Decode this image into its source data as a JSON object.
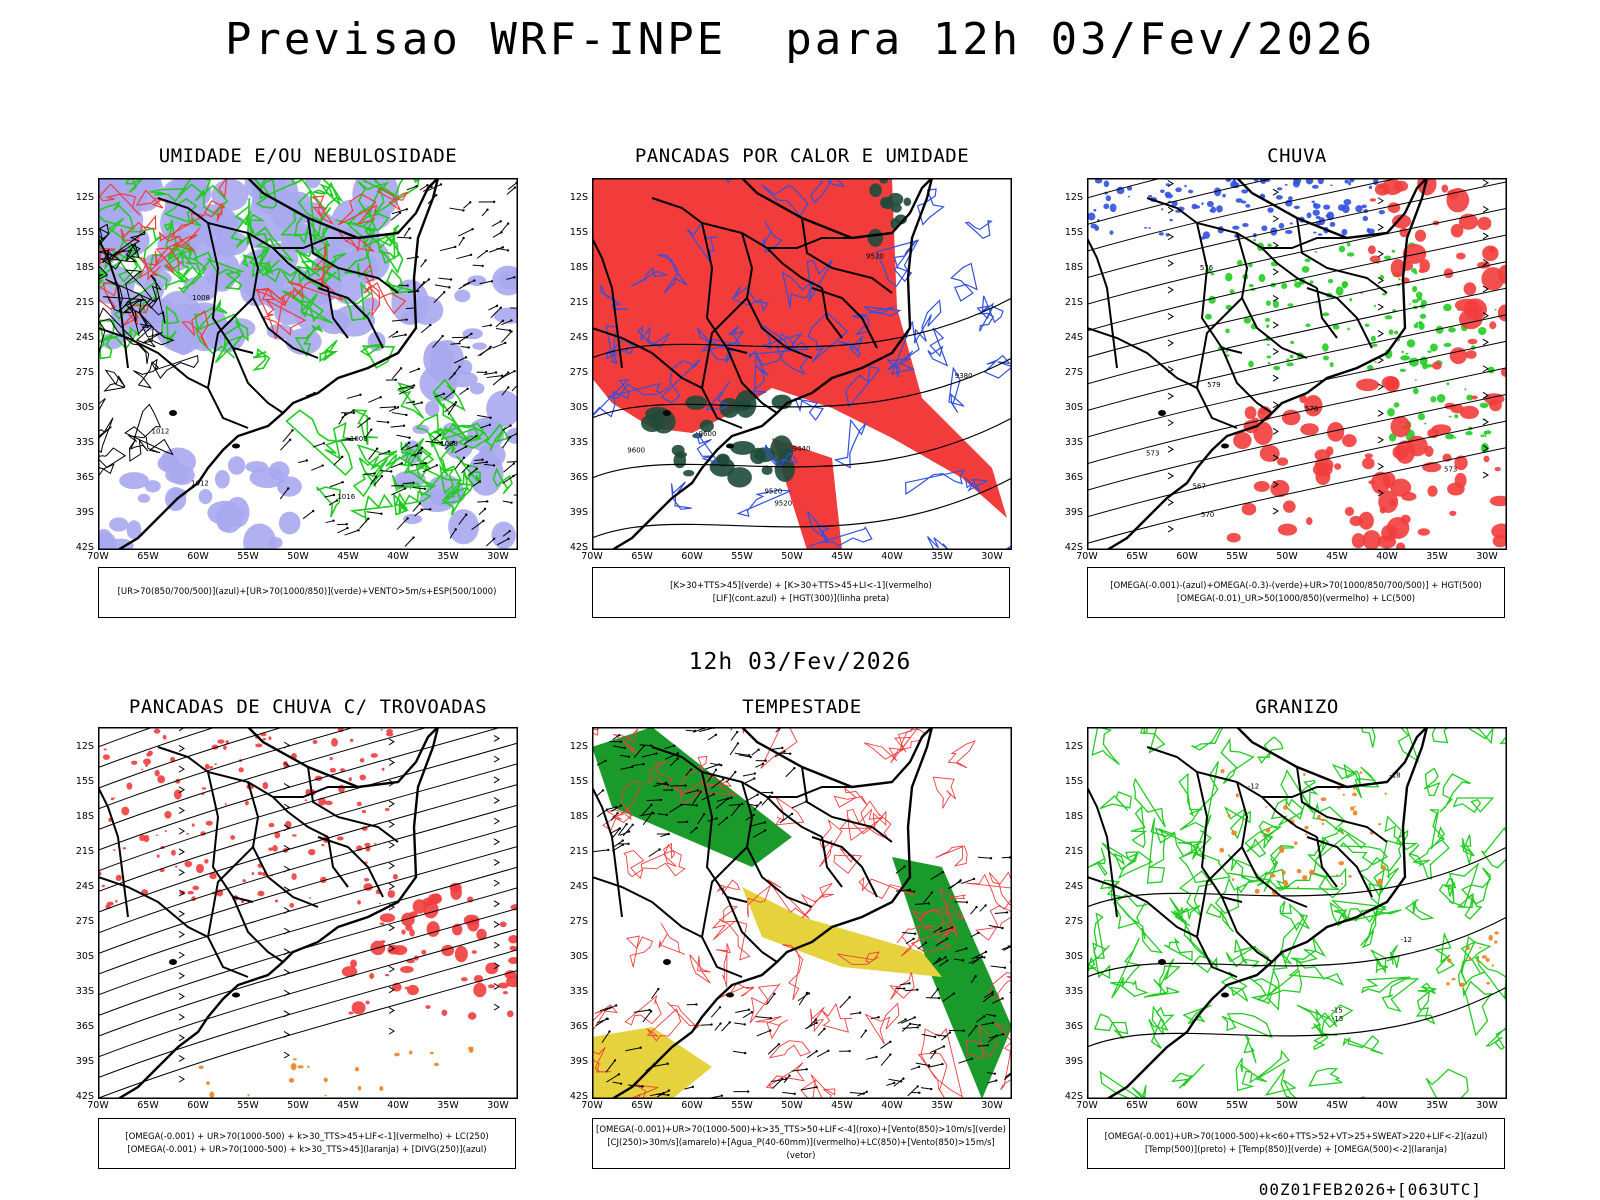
{
  "main_title": "Previsao WRF-INPE  para 12h 03/Fev/2026",
  "mid_title": "12h 03/Fev/2026",
  "footer": "00Z01FEB2026+[063UTC]",
  "lat_labels": [
    "12S",
    "15S",
    "18S",
    "21S",
    "24S",
    "27S",
    "30S",
    "33S",
    "36S",
    "39S",
    "42S"
  ],
  "lon_labels": [
    "70W",
    "65W",
    "60W",
    "55W",
    "50W",
    "45W",
    "40W",
    "35W",
    "30W"
  ],
  "panels": [
    {
      "title": "UMIDADE E/OU NEBULOSIDADE",
      "legend": [
        "[UR>70(850/700/500)](azul)+[UR>70(1000/850)](verde)+VENTO>5m/s+ESP(500/1000)"
      ],
      "contour_labels": [
        "1012",
        "1008",
        "1012",
        "1008",
        "1016",
        "1008"
      ]
    },
    {
      "title": "PANCADAS POR CALOR E UMIDADE",
      "legend": [
        "[K>30+TTS>45](verde) + [K>30+TTS>45+LI<-1](vermelho)",
        "[LIF](cont.azul) + [HGT(300)](linha preta)"
      ],
      "contour_labels": [
        "9600",
        "9520",
        "9600",
        "9520",
        "9520",
        "9440",
        "9380"
      ]
    },
    {
      "title": "CHUVA",
      "legend": [
        "[OMEGA(-0.001)-(azul)+OMEGA(-0.3)-(verde)+UR>70(1000/850/700/500)] + HGT(500)",
        "[OMEGA(-0.01)_UR>50(1000/850)(vermelho) + LC(500)"
      ],
      "contour_labels": [
        "579",
        "576",
        "573",
        "570",
        "567",
        "573",
        "576"
      ]
    },
    {
      "title": "PANCADAS DE CHUVA C/ TROVOADAS",
      "legend": [
        "[OMEGA(-0.001) + UR>70(1000-500) + k>30_TTS>45+LIF<-1](vermelho) + LC(250)",
        "[OMEGA(-0.001) + UR>70(1000-500) + k>30_TTS>45](laranja) + [DIVG(250)](azul)"
      ],
      "contour_labels": []
    },
    {
      "title": "TEMPESTADE",
      "legend": [
        "[OMEGA(-0.001)+UR>70(1000-500)+k>35_TTS>50+LIF<-4](roxo)+[Vento(850)>10m/s](verde)",
        "[CJ(250)>30m/s](amarelo)+[Agua_P(40-60mm)](vermelho)+LC(850)+[Vento(850)>15m/s](vetor)"
      ],
      "contour_labels": []
    },
    {
      "title": "GRANIZO",
      "legend": [
        "[OMEGA(-0.001)+UR>70(1000-500)+k<60+TTS>52+VT>25+SWEAT>220+LIF<-2](azul)",
        "[Temp(500)](preto) + [Temp(850)](verde) + [OMEGA(500)<-2](laranja)"
      ],
      "contour_labels": [
        "-12",
        "-15",
        "-18",
        "-12",
        "-15"
      ]
    }
  ],
  "colors": {
    "blue_shade": "#a9a9f0",
    "green": "#22cc22",
    "red": "#f23c3c",
    "dark_green": "#1e4a3a",
    "blue_line": "#3050e0",
    "yellow": "#e6d23c",
    "orange": "#f08020"
  }
}
